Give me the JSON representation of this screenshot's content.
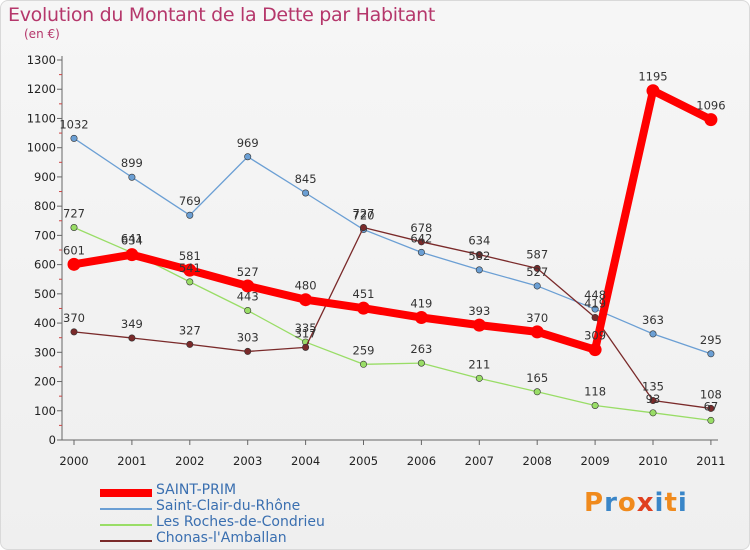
{
  "header": {
    "title": "Evolution du Montant de la Dette par Habitant",
    "subtitle": "(en €)"
  },
  "chart_data": {
    "type": "line",
    "title": "Evolution du Montant de la Dette par Habitant",
    "subtitle": "(en €)",
    "x": [
      "2000",
      "2001",
      "2002",
      "2003",
      "2004",
      "2005",
      "2006",
      "2007",
      "2008",
      "2009",
      "2010",
      "2011"
    ],
    "ylim": [
      0,
      1300
    ],
    "yticks": [
      0,
      100,
      200,
      300,
      400,
      500,
      600,
      700,
      800,
      900,
      1000,
      1100,
      1200,
      1300
    ],
    "grid": false,
    "legend_position": "bottom-left",
    "series": [
      {
        "name": "SAINT-PRIM",
        "color": "#ff0000",
        "values": [
          601,
          634,
          581,
          527,
          480,
          451,
          419,
          393,
          370,
          309,
          1195,
          1096
        ],
        "labels": [
          "601",
          "634",
          "581",
          "527",
          "480",
          "451",
          "419",
          "393",
          "370",
          "309",
          "1195",
          "1096"
        ]
      },
      {
        "name": "Saint-Clair-du-Rhône",
        "color": "#6b9fd4",
        "values": [
          1032,
          899,
          769,
          969,
          845,
          720,
          642,
          582,
          527,
          448,
          363,
          295
        ],
        "labels": [
          "1032",
          "899",
          "769",
          "969",
          "845",
          "720",
          "642",
          "582",
          "527",
          "448",
          "363",
          "295"
        ]
      },
      {
        "name": "Les Roches-de-Condrieu",
        "color": "#99dd66",
        "values": [
          727,
          641,
          541,
          443,
          335,
          259,
          263,
          211,
          165,
          118,
          93,
          67
        ],
        "labels": [
          "727",
          "641",
          "541",
          "443",
          "335",
          "259",
          "263",
          "211",
          "165",
          "118",
          "93",
          "67"
        ]
      },
      {
        "name": "Chonas-l'Amballan",
        "color": "#7a2a2a",
        "values": [
          370,
          349,
          327,
          303,
          317,
          727,
          678,
          634,
          587,
          419,
          135,
          108
        ],
        "labels": [
          "370",
          "349",
          "327",
          "303",
          "317",
          "727",
          "678",
          "634",
          "587",
          "419",
          "135",
          "108"
        ]
      }
    ]
  },
  "logo": {
    "text": "Proxiti",
    "colors": [
      "#f08a1c",
      "#3a86c8",
      "#f08a1c",
      "#e04020",
      "#3a86c8",
      "#f08a1c",
      "#3a86c8"
    ]
  }
}
